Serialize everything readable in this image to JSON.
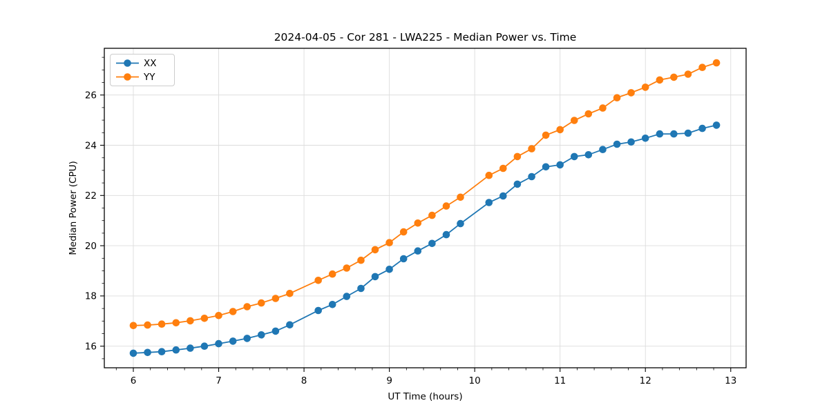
{
  "figure": {
    "background": "#ffffff"
  },
  "chart_data": {
    "type": "line",
    "title": "2024-04-05 - Cor 281 - LWA225 - Median Power vs. Time",
    "xlabel": "UT Time (hours)",
    "ylabel": "Median Power (CPU)",
    "xlim": [
      5.66,
      13.18
    ],
    "ylim": [
      15.14,
      27.86
    ],
    "x_ticks": [
      6,
      7,
      8,
      9,
      10,
      11,
      12,
      13
    ],
    "y_ticks": [
      16,
      18,
      20,
      22,
      24,
      26
    ],
    "x_minor_step": 0.2,
    "y_minor_step": 0.5,
    "grid": true,
    "grid_color": "#dcdcdc",
    "frame_color": "#000000",
    "legend_position": "upper-left",
    "x": [
      6.0,
      6.167,
      6.333,
      6.5,
      6.667,
      6.833,
      7.0,
      7.167,
      7.333,
      7.5,
      7.667,
      7.833,
      8.167,
      8.333,
      8.5,
      8.667,
      8.833,
      9.0,
      9.167,
      9.333,
      9.5,
      9.667,
      9.833,
      10.167,
      10.333,
      10.5,
      10.667,
      10.833,
      11.0,
      11.167,
      11.333,
      11.5,
      11.667,
      11.833,
      12.0,
      12.167,
      12.333,
      12.5,
      12.667,
      12.833
    ],
    "series": [
      {
        "name": "XX",
        "color": "#1f77b4",
        "values": [
          15.72,
          15.75,
          15.78,
          15.85,
          15.92,
          16.0,
          16.1,
          16.2,
          16.31,
          16.45,
          16.6,
          16.85,
          17.42,
          17.66,
          17.98,
          18.3,
          18.77,
          19.06,
          19.48,
          19.79,
          20.09,
          20.44,
          20.88,
          21.72,
          21.98,
          22.45,
          22.75,
          23.14,
          23.22,
          23.55,
          23.62,
          23.83,
          24.04,
          24.13,
          24.28,
          24.45,
          24.45,
          24.48,
          24.67,
          24.8
        ]
      },
      {
        "name": "YY",
        "color": "#ff7f0e",
        "values": [
          16.82,
          16.84,
          16.88,
          16.93,
          17.01,
          17.11,
          17.22,
          17.38,
          17.57,
          17.72,
          17.9,
          18.1,
          18.62,
          18.87,
          19.11,
          19.42,
          19.84,
          20.12,
          20.55,
          20.9,
          21.21,
          21.58,
          21.93,
          22.8,
          23.08,
          23.55,
          23.86,
          24.4,
          24.62,
          24.99,
          25.25,
          25.48,
          25.89,
          26.09,
          26.31,
          26.6,
          26.71,
          26.83,
          27.1,
          27.28
        ]
      }
    ]
  }
}
